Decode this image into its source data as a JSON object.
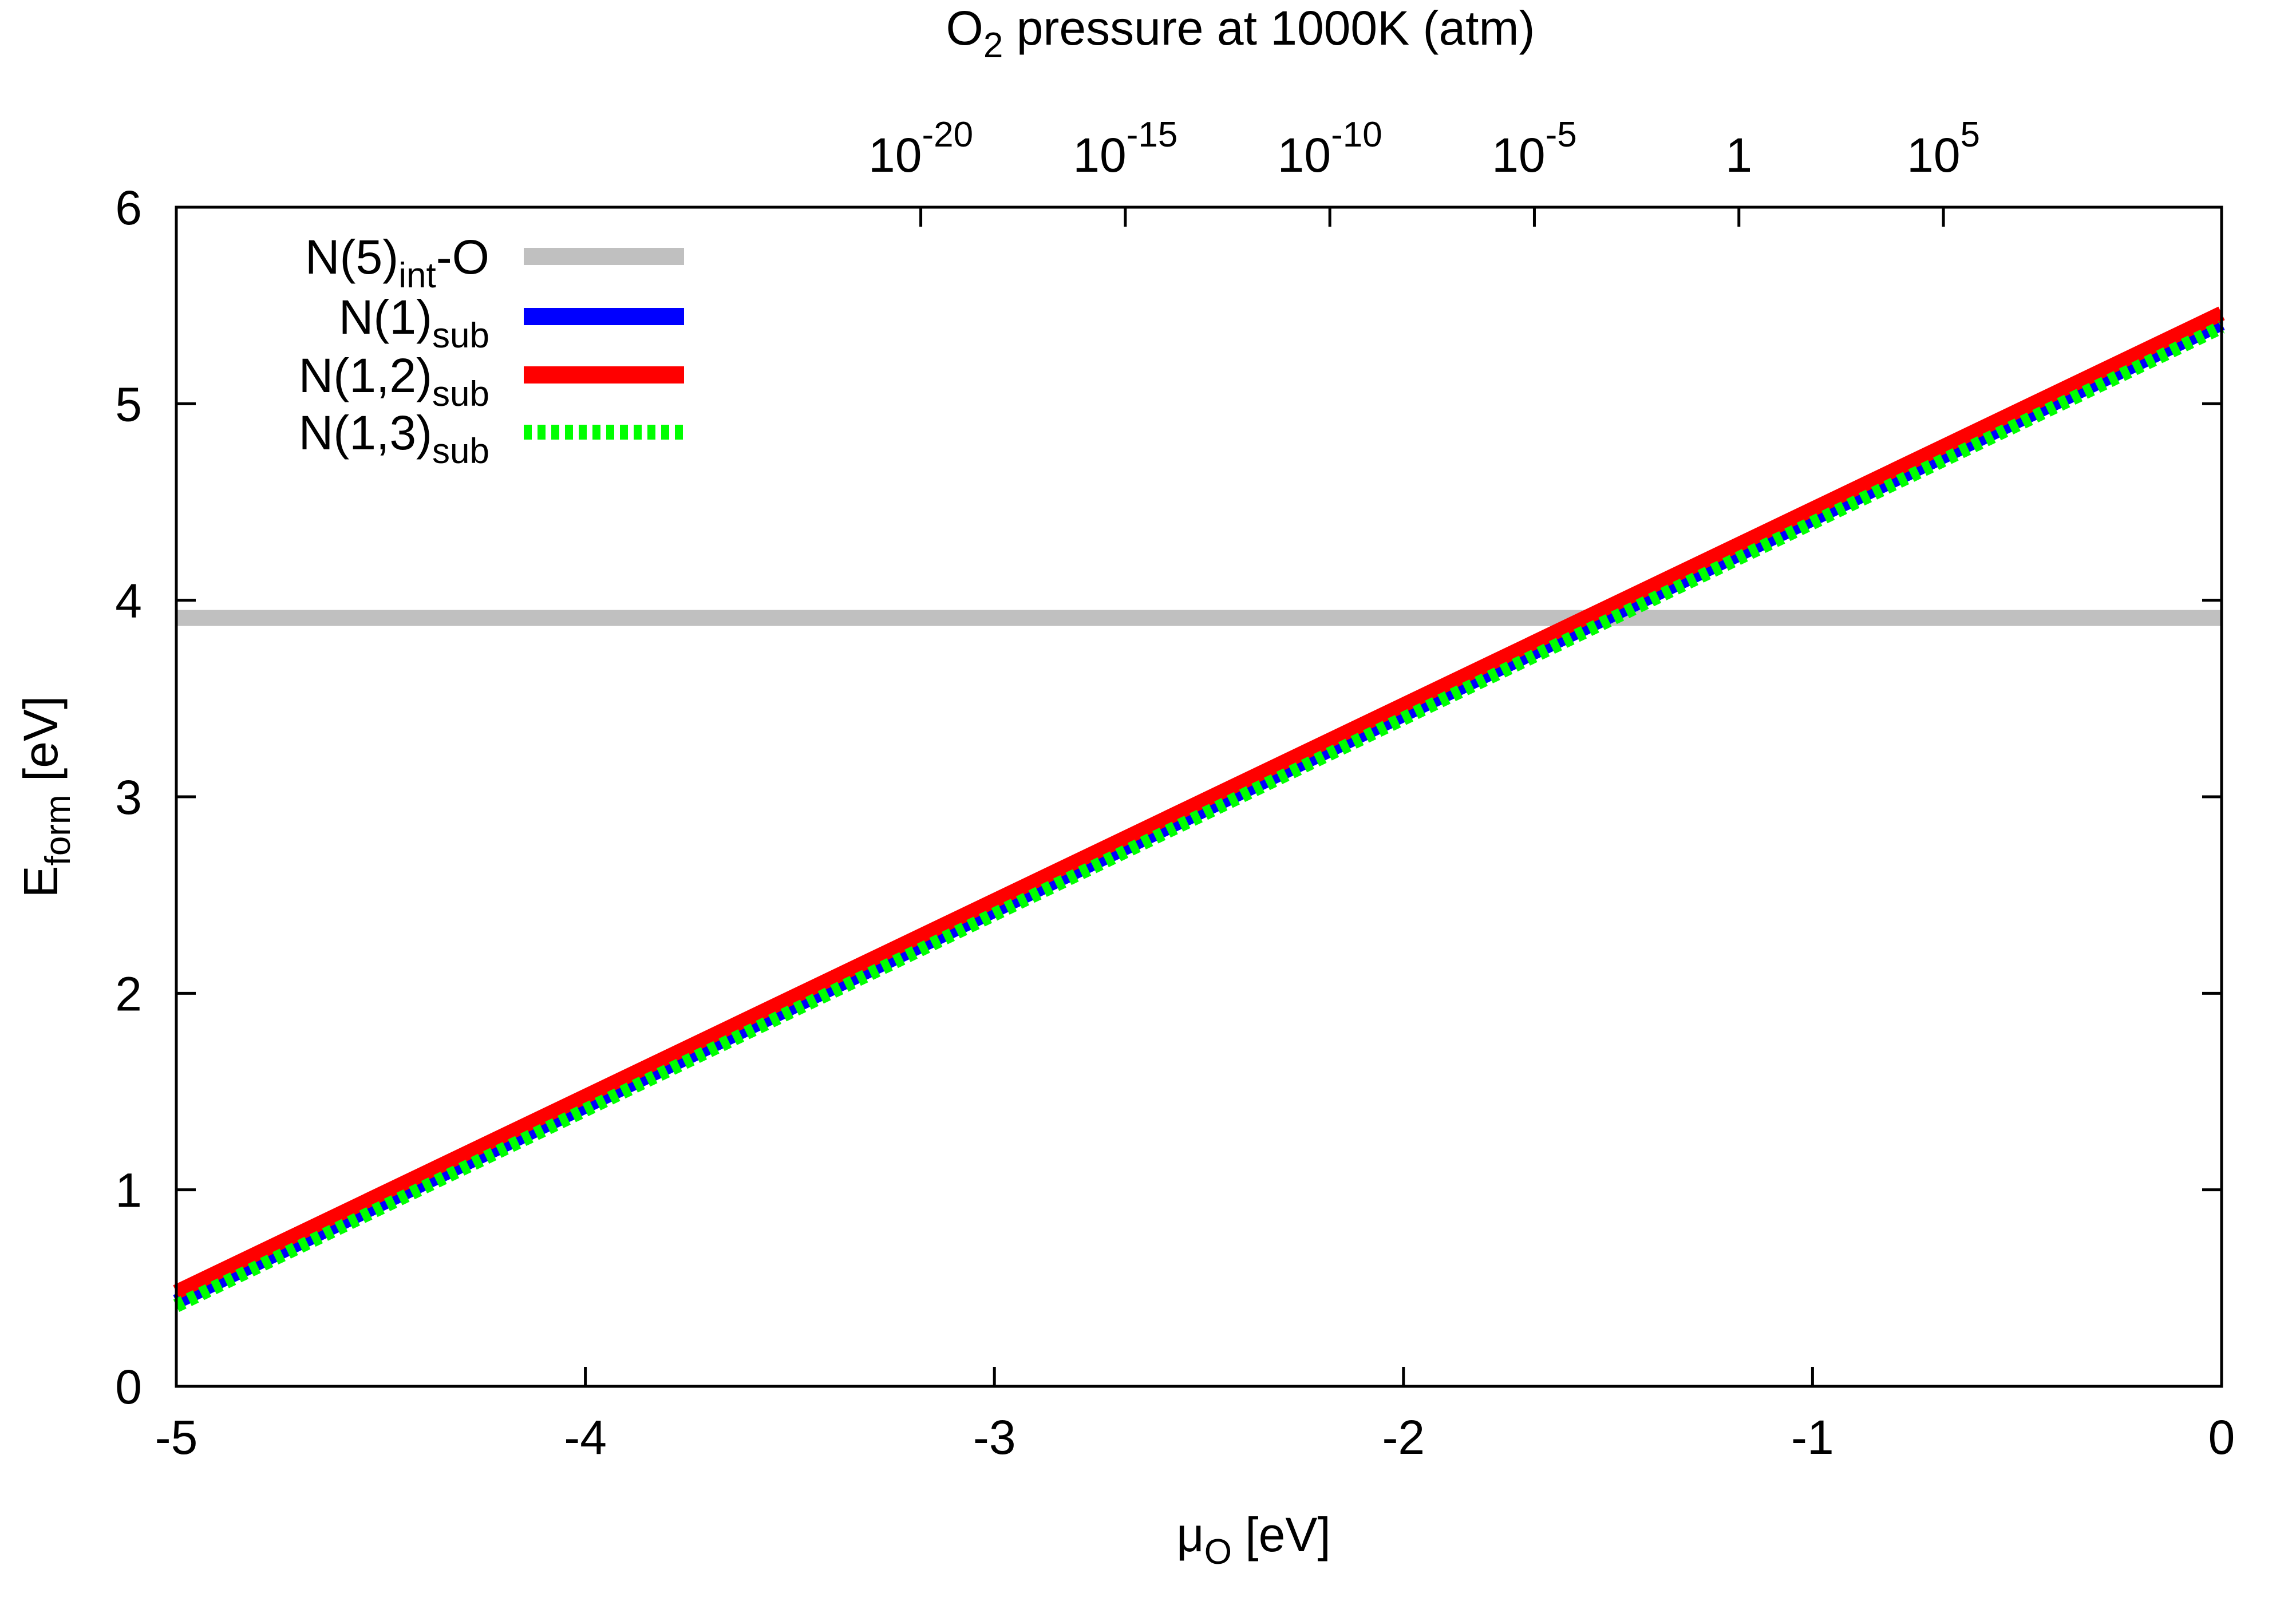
{
  "chart_data": {
    "type": "line",
    "xlabel": {
      "main": "μ",
      "sub": "O",
      "post": " [eV]"
    },
    "ylabel": {
      "main": "E",
      "sub": "form",
      "post": " [eV]"
    },
    "top_axis_title": {
      "pre": "O",
      "sub": "2",
      "post": " pressure at 1000K (atm)"
    },
    "xlim": [
      -5,
      0
    ],
    "ylim": [
      0,
      6
    ],
    "x_ticks": [
      -5,
      -4,
      -3,
      -2,
      -1,
      0
    ],
    "x_tick_labels": [
      "-5",
      "-4",
      "-3",
      "-2",
      "-1",
      "0"
    ],
    "y_ticks": [
      0,
      1,
      2,
      3,
      4,
      5,
      6
    ],
    "y_tick_labels": [
      "0",
      "1",
      "2",
      "3",
      "4",
      "5",
      "6"
    ],
    "top_ticks": [
      {
        "x": -3.18,
        "base": "10",
        "exp": "-20"
      },
      {
        "x": -2.68,
        "base": "10",
        "exp": "-15"
      },
      {
        "x": -2.18,
        "base": "10",
        "exp": "-10"
      },
      {
        "x": -1.68,
        "base": "10",
        "exp": "-5"
      },
      {
        "x": -1.18,
        "base": "1",
        "exp": ""
      },
      {
        "x": -0.68,
        "base": "10",
        "exp": "5"
      }
    ],
    "series": [
      {
        "name": "N(5)",
        "sub": "int",
        "suffix": "-O",
        "color": "#c0c0c0",
        "dash": "solid",
        "x": [
          -5,
          0
        ],
        "y": [
          3.91,
          3.91
        ]
      },
      {
        "name": "N(1)",
        "sub": "sub",
        "suffix": "",
        "color": "#0000ff",
        "dash": "solid",
        "x": [
          -5,
          0
        ],
        "y": [
          0.43,
          5.41
        ]
      },
      {
        "name": "N(1,2)",
        "sub": "sub",
        "suffix": "",
        "color": "#ff0000",
        "dash": "solid",
        "x": [
          -5,
          0
        ],
        "y": [
          0.48,
          5.46
        ]
      },
      {
        "name": "N(1,3)",
        "sub": "sub",
        "suffix": "",
        "color": "#00ff00",
        "dash": "dotted",
        "x": [
          -5,
          0
        ],
        "y": [
          0.41,
          5.39
        ]
      }
    ]
  }
}
